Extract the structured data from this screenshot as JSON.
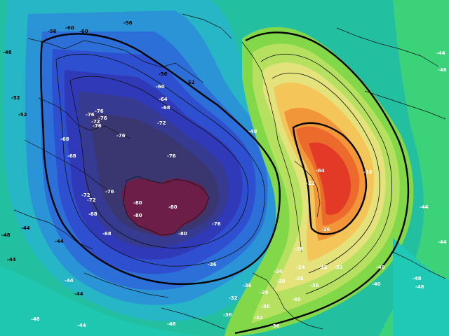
{
  "map": {
    "contour_labels": [
      {
        "text": "-56",
        "theme": "dark"
      },
      {
        "text": "-60",
        "theme": "dark"
      },
      {
        "text": "-60",
        "theme": "dark"
      },
      {
        "text": "-56",
        "theme": "dark"
      },
      {
        "text": "-48",
        "theme": "dark"
      },
      {
        "text": "-52",
        "theme": "dark"
      },
      {
        "text": "-52",
        "theme": "dark"
      },
      {
        "text": "-56",
        "theme": "dark"
      },
      {
        "text": "-52",
        "theme": "dark"
      },
      {
        "text": "-60",
        "theme": "light"
      },
      {
        "text": "-64",
        "theme": "light"
      },
      {
        "text": "-68",
        "theme": "light"
      },
      {
        "text": "-76",
        "theme": "light"
      },
      {
        "text": "-76",
        "theme": "light"
      },
      {
        "text": "-76",
        "theme": "light"
      },
      {
        "text": "-72",
        "theme": "light"
      },
      {
        "text": "-76",
        "theme": "light"
      },
      {
        "text": "-72",
        "theme": "light"
      },
      {
        "text": "-68",
        "theme": "light"
      },
      {
        "text": "-76",
        "theme": "light"
      },
      {
        "text": "-68",
        "theme": "light"
      },
      {
        "text": "-76",
        "theme": "light"
      },
      {
        "text": "-76",
        "theme": "light"
      },
      {
        "text": "-72",
        "theme": "light"
      },
      {
        "text": "-72",
        "theme": "light"
      },
      {
        "text": "-68",
        "theme": "light"
      },
      {
        "text": "-80",
        "theme": "light"
      },
      {
        "text": "-80",
        "theme": "light"
      },
      {
        "text": "-80",
        "theme": "light"
      },
      {
        "text": "-80",
        "theme": "light"
      },
      {
        "text": "-68",
        "theme": "light"
      },
      {
        "text": "-76",
        "theme": "light"
      },
      {
        "text": "-48",
        "theme": "light"
      },
      {
        "text": "-44",
        "theme": "dark"
      },
      {
        "text": "-44",
        "theme": "dark"
      },
      {
        "text": "-44",
        "theme": "dark"
      },
      {
        "text": "-48",
        "theme": "dark"
      },
      {
        "text": "-44",
        "theme": "light"
      },
      {
        "text": "-44",
        "theme": "dark"
      },
      {
        "text": "-48",
        "theme": "light"
      },
      {
        "text": "-44",
        "theme": "light"
      },
      {
        "text": "-48",
        "theme": "light"
      },
      {
        "text": "-16",
        "theme": "light"
      },
      {
        "text": "-64",
        "theme": "light"
      },
      {
        "text": "-22",
        "theme": "light"
      },
      {
        "text": "-26",
        "theme": "light"
      },
      {
        "text": "-28",
        "theme": "light"
      },
      {
        "text": "-24",
        "theme": "light"
      },
      {
        "text": "-32",
        "theme": "light"
      },
      {
        "text": "-28",
        "theme": "light"
      },
      {
        "text": "-24",
        "theme": "light"
      },
      {
        "text": "-20",
        "theme": "light"
      },
      {
        "text": "-32",
        "theme": "light"
      },
      {
        "text": "-36",
        "theme": "light"
      },
      {
        "text": "-40",
        "theme": "light"
      },
      {
        "text": "-36",
        "theme": "light"
      },
      {
        "text": "-32",
        "theme": "light"
      },
      {
        "text": "-28",
        "theme": "light"
      },
      {
        "text": "-36",
        "theme": "light"
      },
      {
        "text": "-36",
        "theme": "light"
      },
      {
        "text": "-32",
        "theme": "light"
      },
      {
        "text": "-36",
        "theme": "light"
      },
      {
        "text": "-44",
        "theme": "light"
      },
      {
        "text": "-48",
        "theme": "light"
      },
      {
        "text": "-48",
        "theme": "light"
      },
      {
        "text": "-48",
        "theme": "light"
      },
      {
        "text": "-44",
        "theme": "light"
      },
      {
        "text": "-44",
        "theme": "light"
      },
      {
        "text": "-40",
        "theme": "light"
      },
      {
        "text": "-40",
        "theme": "light"
      },
      {
        "text": "-36",
        "theme": "light"
      }
    ]
  }
}
